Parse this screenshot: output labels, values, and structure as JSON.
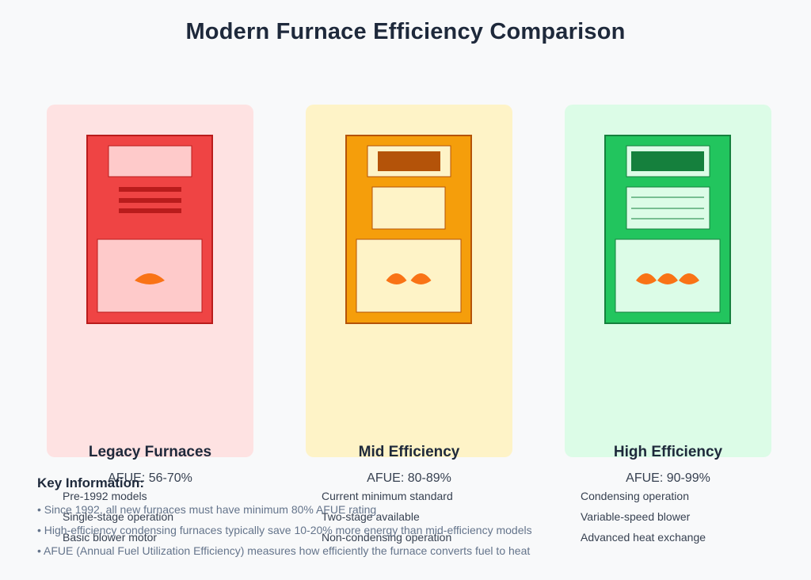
{
  "title": "Modern Furnace Efficiency Comparison",
  "cards": [
    {
      "name": "Legacy Furnaces",
      "afue": "AFUE: 56-70%",
      "features": [
        "Pre-1992 models",
        "Single-stage operation",
        "Basic blower motor"
      ],
      "flames": 1,
      "colors": {
        "bg": "#fee2e2",
        "body": "#ef4444",
        "border": "#b91c1c",
        "panel": "#fecaca",
        "accent": "#b91c1c"
      }
    },
    {
      "name": "Mid Efficiency",
      "afue": "AFUE: 80-89%",
      "features": [
        "Current minimum standard",
        "Two-stage available",
        "Non-condensing operation"
      ],
      "flames": 2,
      "colors": {
        "bg": "#fef3c7",
        "body": "#f59e0b",
        "border": "#b45309",
        "panel": "#fef3c7",
        "accent": "#b45309"
      }
    },
    {
      "name": "High Efficiency",
      "afue": "AFUE: 90-99%",
      "features": [
        "Condensing operation",
        "Variable-speed blower",
        "Advanced heat exchange"
      ],
      "flames": 3,
      "colors": {
        "bg": "#dcfce7",
        "body": "#22c55e",
        "border": "#15803d",
        "panel": "#dcfce7",
        "accent": "#15803d"
      }
    }
  ],
  "flame_color": "#f97316",
  "key_info": {
    "title": "Key Information:",
    "items": [
      "• Since 1992, all new furnaces must have minimum 80% AFUE rating",
      "• High-efficiency condensing furnaces typically save 10-20% more energy than mid-efficiency models",
      "• AFUE (Annual Fuel Utilization Efficiency) measures how efficiently the furnace converts fuel to heat"
    ]
  }
}
